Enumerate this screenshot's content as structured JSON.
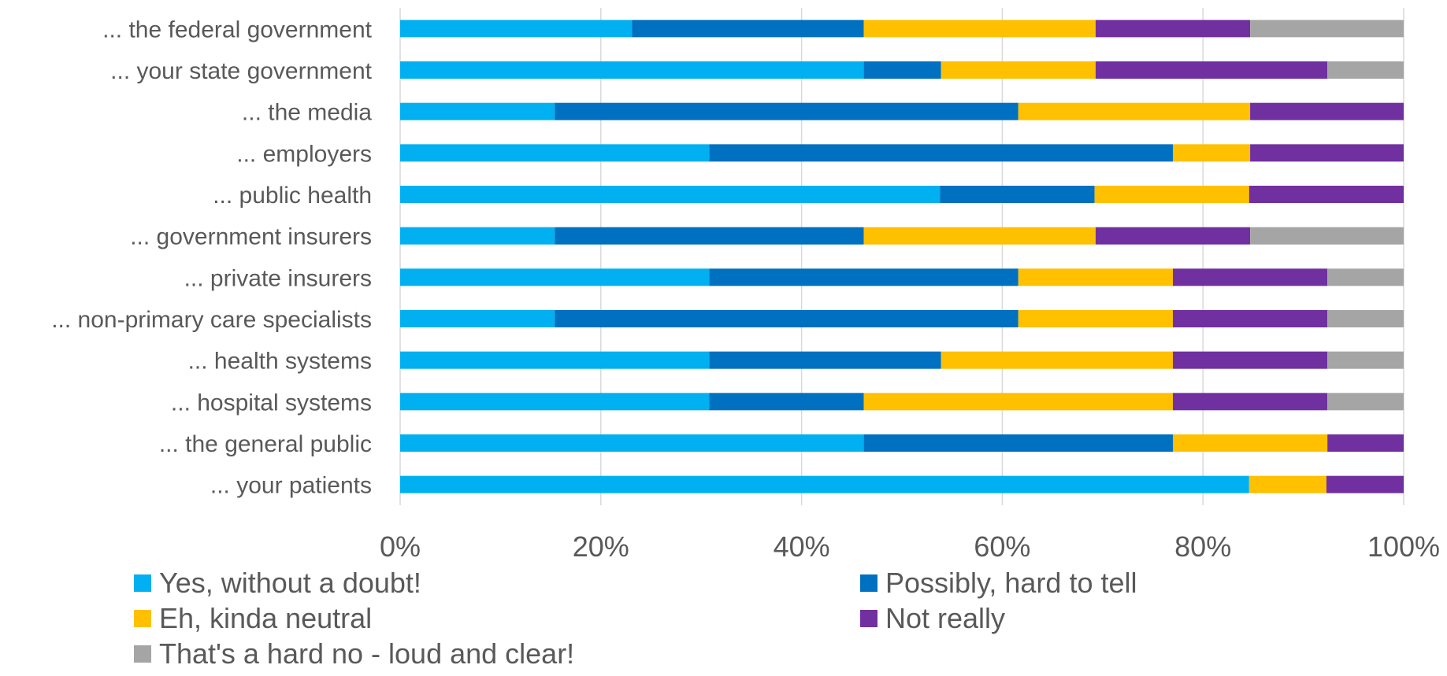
{
  "chart_data": {
    "type": "bar",
    "orientation": "horizontal",
    "stacked": "percent",
    "categories": [
      "... the federal government",
      "... your state government",
      "... the media",
      "... employers",
      "... public health",
      "... government insurers",
      "... private insurers",
      "... non-primary care specialists",
      "... health systems",
      "... hospital systems",
      "... the general public",
      "... your patients"
    ],
    "series": [
      {
        "name": "Yes, without a doubt!",
        "color": "#00B0F0",
        "values": [
          23.1,
          46.2,
          15.4,
          30.8,
          53.8,
          15.4,
          30.8,
          15.4,
          30.8,
          30.8,
          46.2,
          84.6
        ]
      },
      {
        "name": "Possibly, hard to tell",
        "color": "#0070C0",
        "values": [
          23.1,
          7.7,
          46.2,
          46.2,
          15.4,
          30.8,
          30.8,
          46.2,
          23.1,
          15.4,
          30.8,
          0
        ]
      },
      {
        "name": "Eh, kinda neutral",
        "color": "#FFC000",
        "values": [
          23.1,
          15.4,
          23.1,
          7.7,
          15.4,
          23.1,
          15.4,
          15.4,
          23.1,
          30.8,
          15.4,
          7.7
        ]
      },
      {
        "name": "Not really",
        "color": "#7030A0",
        "values": [
          15.4,
          23.1,
          15.4,
          15.4,
          15.4,
          15.4,
          15.4,
          15.4,
          15.4,
          15.4,
          7.7,
          7.7
        ]
      },
      {
        "name": "That's a hard no - loud and clear!",
        "color": "#A5A5A5",
        "values": [
          15.4,
          7.7,
          0,
          0,
          0,
          15.4,
          7.7,
          7.7,
          7.7,
          7.7,
          0,
          0
        ]
      }
    ],
    "x_ticks": [
      "0%",
      "20%",
      "40%",
      "60%",
      "80%",
      "100%"
    ],
    "xlim": [
      0,
      100
    ],
    "grid": true,
    "legend_position": "bottom"
  }
}
